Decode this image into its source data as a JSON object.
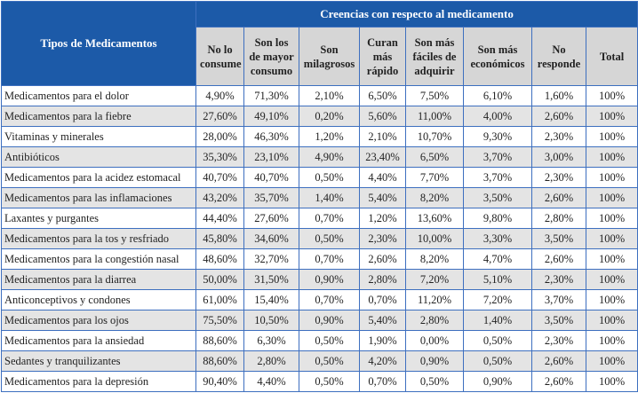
{
  "table": {
    "row_header": "Tipos de Medicamentos",
    "group_header": "Creencias con respecto al medicamento",
    "columns": [
      "No lo consume",
      "Son los de mayor consumo",
      "Son milagrosos",
      "Curan más rápido",
      "Son más fáciles de adquirir",
      "Son más económicos",
      "No responde",
      "Total"
    ],
    "rows": [
      {
        "name": "Medicamentos para el dolor",
        "values": [
          "4,90%",
          "71,30%",
          "2,10%",
          "6,50%",
          "7,50%",
          "6,10%",
          "1,60%",
          "100%"
        ]
      },
      {
        "name": "Medicamentos para la fiebre",
        "values": [
          "27,60%",
          "49,10%",
          "0,20%",
          "5,60%",
          "11,00%",
          "4,00%",
          "2,60%",
          "100%"
        ]
      },
      {
        "name": "Vitaminas y minerales",
        "values": [
          "28,00%",
          "46,30%",
          "1,20%",
          "2,10%",
          "10,70%",
          "9,30%",
          "2,30%",
          "100%"
        ]
      },
      {
        "name": "Antibióticos",
        "values": [
          "35,30%",
          "23,10%",
          "4,90%",
          "23,40%",
          "6,50%",
          "3,70%",
          "3,00%",
          "100%"
        ]
      },
      {
        "name": "Medicamentos para la acidez estomacal",
        "values": [
          "40,70%",
          "40,70%",
          "0,50%",
          "4,40%",
          "7,70%",
          "3,70%",
          "2,30%",
          "100%"
        ]
      },
      {
        "name": "Medicamentos para las inflamaciones",
        "values": [
          "43,20%",
          "35,70%",
          "1,40%",
          "5,40%",
          "8,20%",
          "3,50%",
          "2,60%",
          "100%"
        ]
      },
      {
        "name": "Laxantes y purgantes",
        "values": [
          "44,40%",
          "27,60%",
          "0,70%",
          "1,20%",
          "13,60%",
          "9,80%",
          "2,80%",
          "100%"
        ]
      },
      {
        "name": "Medicamentos para la tos y resfriado",
        "values": [
          "45,80%",
          "34,60%",
          "0,50%",
          "2,30%",
          "10,00%",
          "3,30%",
          "3,50%",
          "100%"
        ]
      },
      {
        "name": "Medicamentos para la congestión nasal",
        "values": [
          "48,60%",
          "32,70%",
          "0,70%",
          "2,60%",
          "8,20%",
          "4,70%",
          "2,60%",
          "100%"
        ]
      },
      {
        "name": "Medicamentos para la diarrea",
        "values": [
          "50,00%",
          "31,50%",
          "0,90%",
          "2,80%",
          "7,20%",
          "5,10%",
          "2,30%",
          "100%"
        ]
      },
      {
        "name": "Anticonceptivos y condones",
        "values": [
          "61,00%",
          "15,40%",
          "0,70%",
          "0,70%",
          "11,20%",
          "7,20%",
          "3,70%",
          "100%"
        ]
      },
      {
        "name": "Medicamentos para los ojos",
        "values": [
          "75,50%",
          "10,50%",
          "0,90%",
          "5,40%",
          "2,80%",
          "1,40%",
          "3,50%",
          "100%"
        ]
      },
      {
        "name": "Medicamentos para la ansiedad",
        "values": [
          "88,60%",
          "6,30%",
          "0,50%",
          "1,90%",
          "0,00%",
          "0,50%",
          "2,30%",
          "100%"
        ]
      },
      {
        "name": "Sedantes y tranquilizantes",
        "values": [
          "88,60%",
          "2,80%",
          "0,50%",
          "4,20%",
          "0,90%",
          "0,50%",
          "2,60%",
          "100%"
        ]
      },
      {
        "name": "Medicamentos para la depresión",
        "values": [
          "90,40%",
          "4,40%",
          "0,50%",
          "0,70%",
          "0,50%",
          "0,90%",
          "2,60%",
          "100%"
        ]
      }
    ]
  },
  "colors": {
    "header_blue": "#1c5aa8",
    "subheader_gray": "#d6d6d6",
    "alt_row": "#e4e4e4",
    "border": "#3d6fbf"
  }
}
